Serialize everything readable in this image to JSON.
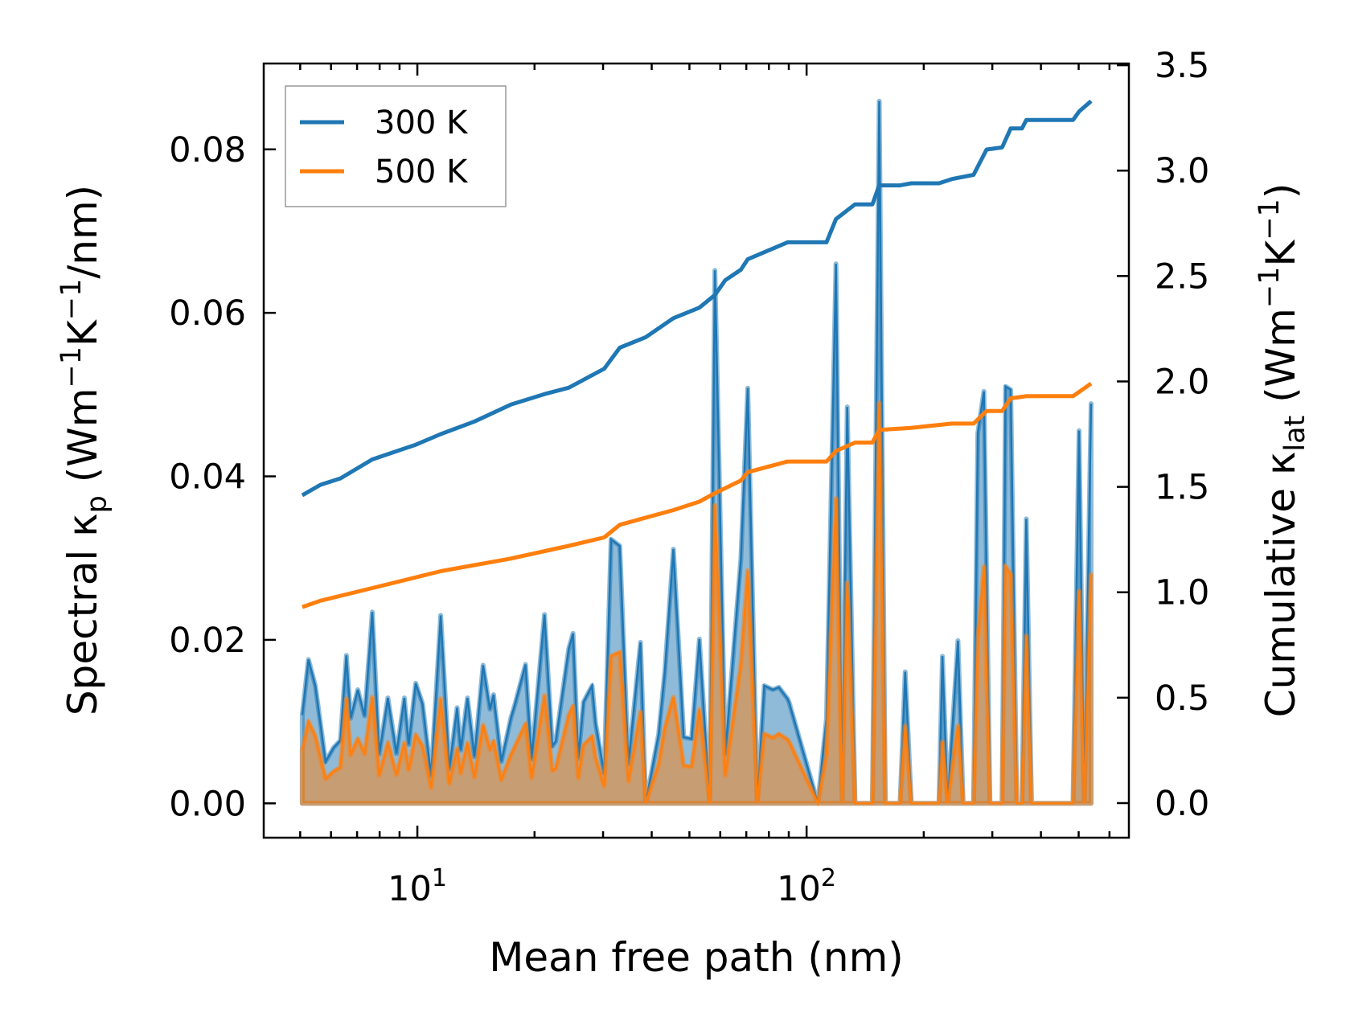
{
  "chart_data": {
    "type": "line",
    "xlabel": "Mean free path (nm)",
    "xscale": "log",
    "xlim": [
      4.03,
      673
    ],
    "x_ticks": [
      {
        "value": 10,
        "base": "10",
        "exp": "1"
      },
      {
        "value": 100,
        "base": "10",
        "exp": "2"
      }
    ],
    "ylabel_left": {
      "a": "Spectral κ",
      "sub": "p",
      "b": " (Wm",
      "sup1": "−1",
      "c": "K",
      "sup2": "−1",
      "d": "/nm)"
    },
    "ylim_left": [
      -0.0042,
      0.0905
    ],
    "yticks_left": [
      "0.00",
      "0.02",
      "0.04",
      "0.06",
      "0.08"
    ],
    "ylabel_right": {
      "a": "Cumulative κ",
      "sub": "lat",
      "b": " (Wm",
      "sup1": "−1",
      "c": "K",
      "sup2": "−1",
      "d": ")"
    },
    "ylim_right": [
      -0.164,
      3.508
    ],
    "yticks_right": [
      "0.0",
      "0.5",
      "1.0",
      "1.5",
      "2.0",
      "2.5",
      "3.0",
      "3.5"
    ],
    "legend": {
      "placement": "upper-left",
      "entries": [
        "300 K",
        "500 K"
      ]
    },
    "colors": {
      "300 K": "#1f77b4",
      "500 K": "#ff7f0e"
    },
    "spectral_x": [
      5.06,
      5.25,
      5.47,
      5.81,
      6.09,
      6.34,
      6.57,
      6.74,
      7.03,
      7.32,
      7.66,
      7.98,
      8.4,
      8.84,
      9.26,
      9.5,
      9.9,
      10.31,
      10.85,
      11.48,
      12.08,
      12.65,
      12.92,
      13.45,
      14.02,
      14.75,
      15.37,
      15.69,
      16.43,
      17.38,
      17.83,
      18.96,
      19.65,
      21.22,
      22.22,
      22.68,
      24.48,
      25.12,
      25.91,
      26.72,
      28.12,
      28.7,
      30.2,
      31.46,
      33.11,
      34.84,
      37.44,
      38.61,
      41.69,
      43.21,
      45.48,
      48.35,
      50.63,
      53.03,
      56.37,
      58.13,
      61.82,
      67.78,
      70.62,
      74.7,
      77.83,
      81.9,
      84.89,
      89.35,
      90.27,
      106.9,
      112.5,
      119.0,
      123.4,
      127.2,
      133.2,
      147.6,
      153.7,
      159.3,
      173.8,
      179.2,
      185.8,
      218.8,
      223.3,
      230.2,
      244.8,
      252.5,
      268.5,
      275.4,
      285.5,
      295.9,
      317.8,
      324.4,
      334.5,
      346.7,
      357.5,
      366.8,
      378.3,
      483.5,
      501.2,
      516.8,
      538.3
    ],
    "series_spectral": [
      {
        "name": "300 K",
        "values": [
          0.0108,
          0.0176,
          0.0144,
          0.0051,
          0.0068,
          0.0077,
          0.0181,
          0.0104,
          0.0139,
          0.0107,
          0.0234,
          0.006,
          0.0129,
          0.0061,
          0.0129,
          0.0072,
          0.0147,
          0.0122,
          0.0033,
          0.023,
          0.0042,
          0.0117,
          0.0065,
          0.0129,
          0.0057,
          0.0169,
          0.0115,
          0.0133,
          0.0051,
          0.0104,
          0.0122,
          0.017,
          0.0054,
          0.0231,
          0.007,
          0.0076,
          0.0189,
          0.0208,
          0.0055,
          0.0124,
          0.0144,
          0.0098,
          0.0037,
          0.0323,
          0.0315,
          0.0048,
          0.0197,
          0.0,
          0.0085,
          0.0161,
          0.0311,
          0.0081,
          0.0079,
          0.0201,
          0.0,
          0.0652,
          0.006,
          0.0299,
          0.0508,
          0.0,
          0.0144,
          0.0139,
          0.0142,
          0.0128,
          0.0123,
          0.0,
          0.0104,
          0.066,
          0.0,
          0.0485,
          0.0,
          0.0,
          0.0859,
          0.0,
          0.0,
          0.0161,
          0.0,
          0.0,
          0.018,
          0.0,
          0.0199,
          0.0,
          0.0,
          0.0453,
          0.0504,
          0.0,
          0.0,
          0.051,
          0.0506,
          0.0,
          0.0,
          0.0348,
          0.0,
          0.0,
          0.0456,
          0.0,
          0.0489
        ]
      },
      {
        "name": "500 K",
        "values": [
          0.0065,
          0.01,
          0.0082,
          0.003,
          0.0039,
          0.0044,
          0.0128,
          0.0059,
          0.0079,
          0.0061,
          0.013,
          0.0034,
          0.0074,
          0.0035,
          0.0074,
          0.0041,
          0.0084,
          0.007,
          0.0019,
          0.0128,
          0.0024,
          0.0067,
          0.0037,
          0.0074,
          0.0032,
          0.0096,
          0.0066,
          0.0076,
          0.0029,
          0.0059,
          0.007,
          0.0097,
          0.0031,
          0.0132,
          0.004,
          0.0043,
          0.0108,
          0.0119,
          0.0031,
          0.0071,
          0.0082,
          0.0056,
          0.0021,
          0.018,
          0.0185,
          0.0027,
          0.0112,
          0.0,
          0.0048,
          0.0092,
          0.013,
          0.0046,
          0.0045,
          0.0115,
          0.0,
          0.0365,
          0.0034,
          0.017,
          0.0285,
          0.0,
          0.0085,
          0.008,
          0.0085,
          0.0078,
          0.0075,
          0.0,
          0.006,
          0.0373,
          0.0,
          0.027,
          0.0,
          0.0,
          0.049,
          0.0,
          0.0,
          0.0095,
          0.0,
          0.0,
          0.0075,
          0.0,
          0.0095,
          0.0,
          0.0,
          0.02,
          0.029,
          0.0,
          0.0,
          0.029,
          0.028,
          0.0,
          0.0,
          0.0205,
          0.0,
          0.0,
          0.026,
          0.0,
          0.028
        ]
      }
    ],
    "series_cumulative": [
      {
        "name": "300 K",
        "x": [
          5.06,
          5.64,
          6.34,
          7.66,
          9.9,
          11.48,
          14.02,
          17.38,
          21.22,
          24.48,
          30.2,
          33.11,
          38.61,
          45.48,
          53.03,
          58.13,
          61.82,
          67.78,
          70.62,
          89.35,
          112.5,
          119.0,
          133.2,
          147.6,
          153.7,
          173.8,
          185.8,
          218.8,
          236.2,
          268.5,
          290.0,
          317.8,
          334.5,
          357.5,
          366.8,
          483.5,
          501.2,
          538.3
        ],
        "values": [
          1.46,
          1.51,
          1.54,
          1.63,
          1.7,
          1.75,
          1.81,
          1.89,
          1.94,
          1.97,
          2.06,
          2.16,
          2.21,
          2.3,
          2.35,
          2.41,
          2.48,
          2.53,
          2.58,
          2.66,
          2.66,
          2.77,
          2.84,
          2.84,
          2.93,
          2.93,
          2.94,
          2.94,
          2.96,
          2.98,
          3.1,
          3.11,
          3.2,
          3.2,
          3.24,
          3.24,
          3.28,
          3.33
        ]
      },
      {
        "name": "500 K",
        "x": [
          5.06,
          5.64,
          7.66,
          11.48,
          17.38,
          24.48,
          30.2,
          33.11,
          45.48,
          53.03,
          58.13,
          67.78,
          70.62,
          89.35,
          112.5,
          119.0,
          133.2,
          147.6,
          153.7,
          185.8,
          236.2,
          268.5,
          290.0,
          317.8,
          334.5,
          366.8,
          483.5,
          538.3
        ],
        "values": [
          0.93,
          0.96,
          1.02,
          1.1,
          1.16,
          1.22,
          1.26,
          1.32,
          1.39,
          1.43,
          1.47,
          1.53,
          1.57,
          1.62,
          1.62,
          1.67,
          1.71,
          1.71,
          1.77,
          1.78,
          1.8,
          1.8,
          1.86,
          1.86,
          1.92,
          1.93,
          1.93,
          1.99
        ]
      }
    ]
  }
}
